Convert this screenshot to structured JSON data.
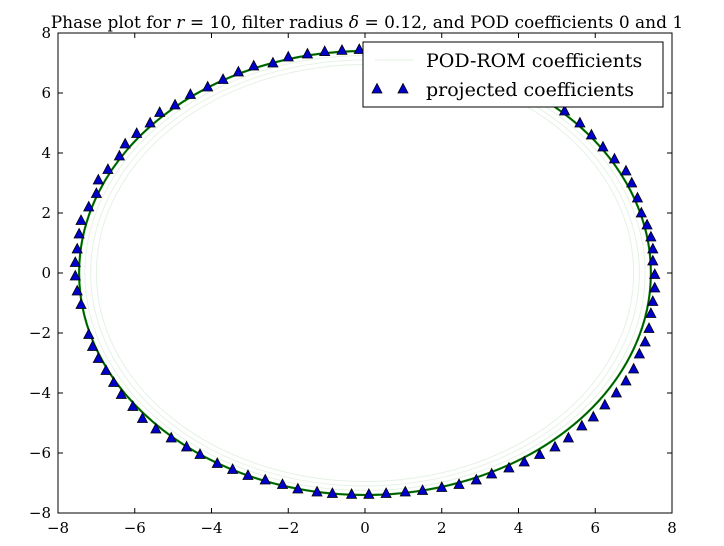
{
  "chart_data": {
    "type": "scatter",
    "title": {
      "prefix": "Phase plot for ",
      "r_sym": "r",
      "r_eq": " = 10",
      "mid": ", filter radius ",
      "delta_sym": "δ",
      "delta_eq": " = 0.12",
      "suffix": ", and POD coefficients ",
      "c0": "0",
      "and": " and ",
      "c1": "1"
    },
    "xlabel": "",
    "ylabel": "",
    "xlim": [
      -8,
      8
    ],
    "ylim": [
      -8,
      8
    ],
    "xticks": [
      -8,
      -6,
      -4,
      -2,
      0,
      2,
      4,
      6,
      8
    ],
    "yticks": [
      -8,
      -6,
      -4,
      -2,
      0,
      2,
      4,
      6,
      8
    ],
    "x_tick_labels": [
      "−8",
      "−6",
      "−4",
      "−2",
      "0",
      "2",
      "4",
      "6",
      "8"
    ],
    "y_tick_labels": [
      "−8",
      "−6",
      "−4",
      "−2",
      "0",
      "2",
      "4",
      "6",
      "8"
    ],
    "grid": false,
    "legend_position": "top-right",
    "series": [
      {
        "name": "POD-ROM coefficients",
        "kind": "line",
        "color": "#008000",
        "description": "ellipse trajectory, center (0, 0), semi-axis x ≈ 7.45, y ≈ 7.4; faint inner spiral loops",
        "cx": 0,
        "cy": 0,
        "rx": 7.45,
        "ry": 7.4,
        "inner_loops": [
          {
            "rx": 7.3,
            "ry": 7.25
          },
          {
            "rx": 7.15,
            "ry": 7.1
          },
          {
            "rx": 7.0,
            "ry": 6.95
          }
        ]
      },
      {
        "name": "projected coefficients",
        "kind": "marker",
        "marker": "triangle",
        "color": "#0000cc",
        "points": [
          [
            -7.4,
            -1.05
          ],
          [
            -7.5,
            -0.6
          ],
          [
            -7.55,
            -0.1
          ],
          [
            -7.55,
            0.35
          ],
          [
            -7.5,
            0.8
          ],
          [
            -7.45,
            1.3
          ],
          [
            -7.4,
            1.75
          ],
          [
            -7.2,
            2.2
          ],
          [
            -7.0,
            2.65
          ],
          [
            -6.95,
            3.1
          ],
          [
            -6.7,
            3.45
          ],
          [
            -6.4,
            3.9
          ],
          [
            -6.25,
            4.3
          ],
          [
            -5.95,
            4.65
          ],
          [
            -5.6,
            5.0
          ],
          [
            -5.35,
            5.35
          ],
          [
            -4.95,
            5.6
          ],
          [
            -4.55,
            5.95
          ],
          [
            -4.1,
            6.2
          ],
          [
            -3.7,
            6.45
          ],
          [
            -3.3,
            6.7
          ],
          [
            -2.9,
            6.9
          ],
          [
            -2.4,
            7.0
          ],
          [
            -2.0,
            7.2
          ],
          [
            -1.5,
            7.3
          ],
          [
            -1.05,
            7.38
          ],
          [
            -0.6,
            7.42
          ],
          [
            -0.15,
            7.45
          ],
          [
            0.3,
            7.42
          ],
          [
            5.2,
            5.4
          ],
          [
            5.6,
            5.0
          ],
          [
            5.9,
            4.6
          ],
          [
            6.2,
            4.2
          ],
          [
            6.5,
            3.8
          ],
          [
            6.8,
            3.4
          ],
          [
            6.95,
            3.0
          ],
          [
            7.1,
            2.5
          ],
          [
            7.2,
            2.0
          ],
          [
            7.35,
            1.6
          ],
          [
            7.45,
            1.2
          ],
          [
            7.5,
            0.8
          ],
          [
            7.5,
            0.4
          ],
          [
            7.55,
            -0.05
          ],
          [
            7.55,
            -0.5
          ],
          [
            7.5,
            -0.95
          ],
          [
            7.45,
            -1.35
          ],
          [
            7.4,
            -1.85
          ],
          [
            7.3,
            -2.3
          ],
          [
            7.15,
            -2.7
          ],
          [
            7.0,
            -3.2
          ],
          [
            6.8,
            -3.6
          ],
          [
            6.55,
            -4.0
          ],
          [
            6.25,
            -4.4
          ],
          [
            5.95,
            -4.8
          ],
          [
            5.65,
            -5.1
          ],
          [
            5.3,
            -5.5
          ],
          [
            4.95,
            -5.8
          ],
          [
            4.55,
            -6.05
          ],
          [
            4.15,
            -6.3
          ],
          [
            3.75,
            -6.5
          ],
          [
            3.3,
            -6.7
          ],
          [
            2.9,
            -6.9
          ],
          [
            2.45,
            -7.05
          ],
          [
            2.0,
            -7.15
          ],
          [
            1.5,
            -7.25
          ],
          [
            1.05,
            -7.3
          ],
          [
            0.55,
            -7.35
          ],
          [
            0.1,
            -7.38
          ],
          [
            -0.35,
            -7.38
          ],
          [
            -0.85,
            -7.35
          ],
          [
            -1.25,
            -7.3
          ],
          [
            -1.75,
            -7.2
          ],
          [
            -2.15,
            -7.05
          ],
          [
            -2.6,
            -6.9
          ],
          [
            -3.05,
            -6.75
          ],
          [
            -3.45,
            -6.55
          ],
          [
            -3.85,
            -6.35
          ],
          [
            -4.3,
            -6.05
          ],
          [
            -4.65,
            -5.8
          ],
          [
            -5.05,
            -5.5
          ],
          [
            -5.45,
            -5.2
          ],
          [
            -5.8,
            -4.85
          ],
          [
            -6.05,
            -4.45
          ],
          [
            -6.35,
            -4.05
          ],
          [
            -6.55,
            -3.65
          ],
          [
            -6.75,
            -3.25
          ],
          [
            -6.95,
            -2.85
          ],
          [
            -7.1,
            -2.45
          ],
          [
            -7.2,
            -2.05
          ]
        ]
      }
    ],
    "legend": [
      {
        "label": "POD-ROM coefficients",
        "kind": "line"
      },
      {
        "label": "projected coefficients",
        "kind": "marker"
      }
    ]
  }
}
